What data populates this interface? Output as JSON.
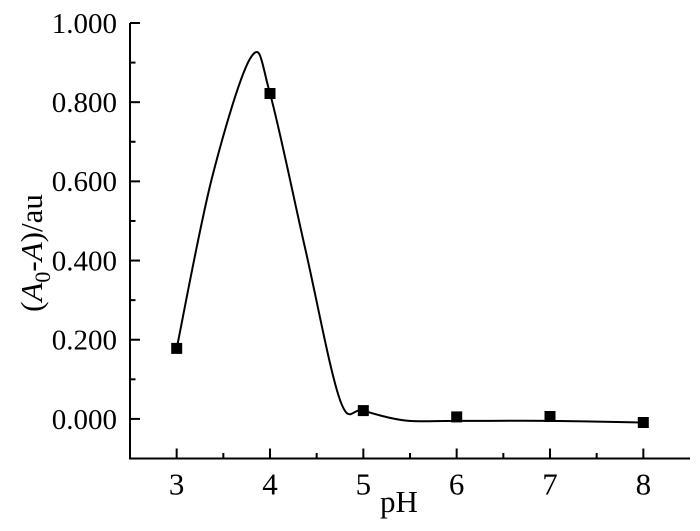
{
  "chart_data": {
    "type": "scatter",
    "subtype": "scatter-points-with-smooth-fit-curve",
    "title": "",
    "xlabel": "pH",
    "ylabel": "(A0-A)/au",
    "ylabel_parts": [
      {
        "text": "(",
        "style": "normal"
      },
      {
        "text": "A",
        "style": "italic"
      },
      {
        "text": "0",
        "style": "subscript"
      },
      {
        "text": "-",
        "style": "normal"
      },
      {
        "text": "A",
        "style": "italic"
      },
      {
        "text": ")/au",
        "style": "normal"
      }
    ],
    "xlim": [
      2.5,
      8.5
    ],
    "ylim": [
      -0.1,
      1.0
    ],
    "x_major_ticks": [
      3,
      4,
      5,
      6,
      7,
      8
    ],
    "x_tick_labels": [
      "3",
      "4",
      "5",
      "6",
      "7",
      "8"
    ],
    "x_minor_ticks": [
      3.5,
      4.5,
      5.5,
      6.5,
      7.5
    ],
    "y_major_ticks": [
      0.0,
      0.2,
      0.4,
      0.6,
      0.8,
      1.0
    ],
    "y_tick_labels": [
      "0.000",
      "0.200",
      "0.400",
      "0.600",
      "0.800",
      "1.000"
    ],
    "y_minor_ticks": [
      0.1,
      0.3,
      0.5,
      0.7,
      0.9
    ],
    "points": [
      {
        "x": 3,
        "y": 0.178
      },
      {
        "x": 4,
        "y": 0.822
      },
      {
        "x": 5,
        "y": 0.021
      },
      {
        "x": 6,
        "y": 0.005
      },
      {
        "x": 7,
        "y": 0.006
      },
      {
        "x": 8,
        "y": -0.009
      }
    ],
    "fit_curve_peak": {
      "x": 3.8,
      "y": 0.915
    },
    "fit_curve": [
      [
        3.0,
        0.178
      ],
      [
        3.38,
        0.61
      ],
      [
        3.8,
        0.915
      ],
      [
        4.0,
        0.822
      ],
      [
        4.38,
        0.427
      ],
      [
        4.75,
        0.048
      ],
      [
        5.0,
        0.021
      ],
      [
        5.45,
        -0.004
      ],
      [
        6.0,
        -0.005
      ],
      [
        7.0,
        -0.005
      ],
      [
        8.0,
        -0.009
      ]
    ],
    "marker": "filled-square",
    "marker_size_px": 11,
    "grid": false,
    "legend": null,
    "axes_shown": [
      "left",
      "bottom"
    ],
    "tick_direction": "in",
    "colors": {
      "axis": "#000000",
      "curve": "#000000",
      "marker": "#000000",
      "text": "#000000",
      "background": "#ffffff"
    }
  }
}
